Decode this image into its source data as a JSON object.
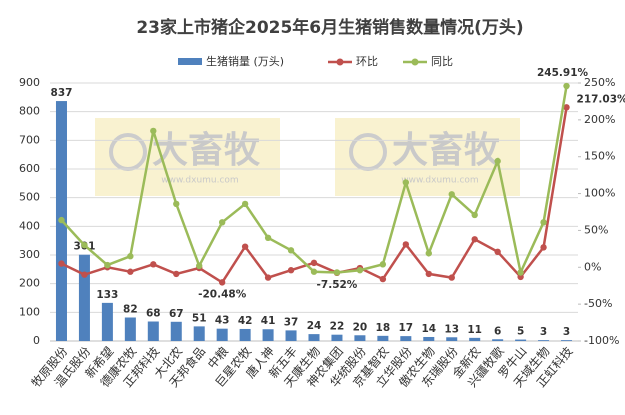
{
  "chart_data": {
    "type": "bar_line",
    "title": "23家上市猪企2025年6月生猪销售数量情况(万头)",
    "watermark": [
      "大畜牧",
      "www.dxumu.com"
    ],
    "categories": [
      "牧原股份",
      "温氏股份",
      "新希望",
      "德康农牧",
      "正邦科技",
      "大北农",
      "天邦食品",
      "中粮",
      "巨星农牧",
      "唐人神",
      "新五丰",
      "天康生物",
      "神农集团",
      "华统股份",
      "京基智农",
      "立华股份",
      "傲农生物",
      "东瑞股份",
      "金新农",
      "兴疆牧歌",
      "罗牛山",
      "天域生物",
      "正虹科技"
    ],
    "series": [
      {
        "name": "生猪销量 (万头)",
        "color": "#4f81bd",
        "values": [
          837,
          301,
          133,
          82,
          68,
          67,
          51,
          43,
          42,
          41,
          37,
          24,
          22,
          20,
          18,
          17,
          14,
          13,
          11,
          6,
          5,
          3,
          3
        ]
      },
      {
        "name": "环比",
        "color": "#c0504d",
        "axis": "y2",
        "values": [
          5,
          -10,
          0,
          -6,
          4,
          -9,
          -1,
          -20.48,
          28,
          -14,
          -4,
          6,
          -7.52,
          -1,
          -16,
          31,
          -9,
          -14,
          38,
          21,
          -13,
          27,
          217.03
        ],
        "value_labels": [
          null,
          null,
          null,
          null,
          null,
          null,
          null,
          "-20.48%",
          null,
          null,
          null,
          null,
          "-7.52%",
          null,
          null,
          null,
          null,
          null,
          null,
          null,
          null,
          null,
          "217.03%"
        ]
      },
      {
        "name": "同比",
        "color": "#9bbb59",
        "axis": "y2",
        "values": [
          64,
          30,
          3,
          15,
          185,
          86,
          2,
          61,
          86,
          40,
          23,
          -6,
          -7,
          -4,
          4,
          115,
          19,
          99,
          71,
          144,
          -7,
          61,
          245.91
        ],
        "value_labels": [
          null,
          null,
          null,
          null,
          null,
          null,
          null,
          null,
          null,
          null,
          null,
          null,
          null,
          null,
          null,
          null,
          null,
          null,
          null,
          null,
          null,
          null,
          "245.91%"
        ]
      }
    ],
    "ylim": [
      0,
      900
    ],
    "yticks": [
      0,
      100,
      200,
      300,
      400,
      500,
      600,
      700,
      800,
      900
    ],
    "y2lim": [
      -100,
      250
    ],
    "y2ticks": [
      {
        "value": -100,
        "label": "-100%"
      },
      {
        "value": -50,
        "label": "-50%"
      },
      {
        "value": 0,
        "label": "0%"
      },
      {
        "value": 50,
        "label": "50%"
      },
      {
        "value": 100,
        "label": "100%"
      },
      {
        "value": 150,
        "label": "150%"
      },
      {
        "value": 200,
        "label": "200%"
      },
      {
        "value": 250,
        "label": "250%"
      }
    ],
    "grid": true,
    "legend": "top"
  }
}
